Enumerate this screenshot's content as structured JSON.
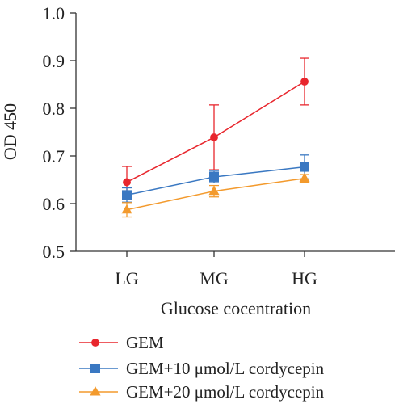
{
  "chart_data": {
    "type": "line",
    "categories": [
      "LG",
      "MG",
      "HG"
    ],
    "xlabel": "Glucose cocentration",
    "ylabel": "OD 450",
    "ylim": [
      0.5,
      1.0
    ],
    "yticks": [
      "0.5",
      "0.6",
      "0.7",
      "0.8",
      "0.9",
      "1.0"
    ],
    "grid": false,
    "legend_position": "bottom",
    "series": [
      {
        "name": "GEM",
        "color": "#e8262d",
        "marker": "circle",
        "values": [
          0.645,
          0.739,
          0.856
        ],
        "errors": [
          0.033,
          0.068,
          0.049
        ]
      },
      {
        "name": "GEM+10 μmol/L cordycepin",
        "color": "#3a78c2",
        "marker": "square",
        "values": [
          0.618,
          0.656,
          0.677
        ],
        "errors": [
          0.015,
          0.012,
          0.025
        ]
      },
      {
        "name": "GEM+20 μmol/L cordycepin",
        "color": "#f39a2d",
        "marker": "triangle",
        "values": [
          0.587,
          0.626,
          0.653
        ],
        "errors": [
          0.015,
          0.012,
          0.008
        ]
      }
    ]
  }
}
